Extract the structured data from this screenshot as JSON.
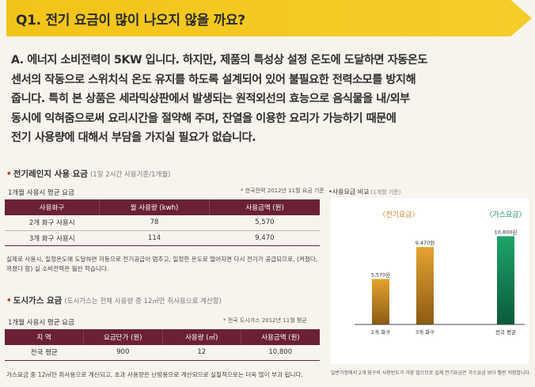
{
  "question": {
    "title": "Q1. 전기 요금이 많이 나오지 않을 까요?"
  },
  "answer": {
    "lines": [
      "A. 에너지 소비전력이 5KW 입니다. 하지만, 제품의 특성상 설정 온도에 도달하면 자동온도",
      "센서의 작동으로 스위치식 온도 유지를 하도록 설계되어 있어 불필요한 전력소모를 방지해",
      "줍니다. 특히 본 상품은 세라믹상판에서 발생되는 원적외선의 효능으로 음식물을 내/외부",
      "동시에 익혀줌으로써 요리시간을 절약해 주며, 잔열을 이용한 요리가 가능하기 때문에",
      "전기 사용량에 대해서 부담을 가지실 필요가 없습니다."
    ]
  },
  "electric": {
    "title": "전기레인지 사용 요금",
    "subtitle": "(1일 2시간 사용기준/1개월)",
    "caption": "1개월 사용시 평균 요금",
    "source": "* 한국전력 2012년 11월 요금 기준",
    "headers": [
      "사용화구",
      "월 사용량 (kwh)",
      "사용금액 (원)"
    ],
    "rows": [
      [
        "2개 화구 사용시",
        "78",
        "5,570"
      ],
      [
        "3개 화구 사용시",
        "114",
        "9,470"
      ]
    ],
    "note": "실제로 사용시, 일정온도에 도달하면 자동으로 전기공급이 멈추고, 일정한 온도로 떨어지면 다시 전기가 공급되므로, (켜졌다, 꺼졌다 함) 실 소비전력은 훨씬 적습니다."
  },
  "gas": {
    "title": "도시가스 요금",
    "subtitle": "(도시가스는 전체 사용량 중 12㎥만 취사용으로 계산함)",
    "caption": "1개월 사용시 평균 요금",
    "source": "* 전국 도시가스 2012년 11월 평균",
    "headers": [
      "지 역",
      "요금단가 (원)",
      "사용량 (㎥)",
      "사용금액 (원)"
    ],
    "rows": [
      [
        "전국 평균",
        "900",
        "12",
        "10,800"
      ]
    ],
    "footnote": "가스요금 중 12㎥만 취사용으로 계산되고, 초과 사용량은 난방용으로 계산되므로 실질적으로는 더욱 많이 부과 됩니다."
  },
  "chart_data": {
    "type": "bar",
    "title": "사용요금 비교",
    "subtitle": "(1개월 기준)",
    "group_labels": [
      "〈전기요금〉",
      "〈가스요금〉"
    ],
    "categories": [
      "2개 화구",
      "3개 화구",
      "전국 평균"
    ],
    "values": [
      5570,
      9470,
      10800
    ],
    "value_labels": [
      "5,570원",
      "9,470원",
      "10,800원"
    ],
    "ylim": [
      0,
      12000
    ],
    "note": "일반가정에서 2개 화구의 사용빈도가 가장 많으므로 실제 전기요금은 가스요금 보다 훨씬 저렴합니다.",
    "colors": {
      "electric": "#8c5a14",
      "gas": "#0f8a58",
      "accent_label": "#c9842a",
      "gas_label": "#1a8a5a"
    }
  }
}
